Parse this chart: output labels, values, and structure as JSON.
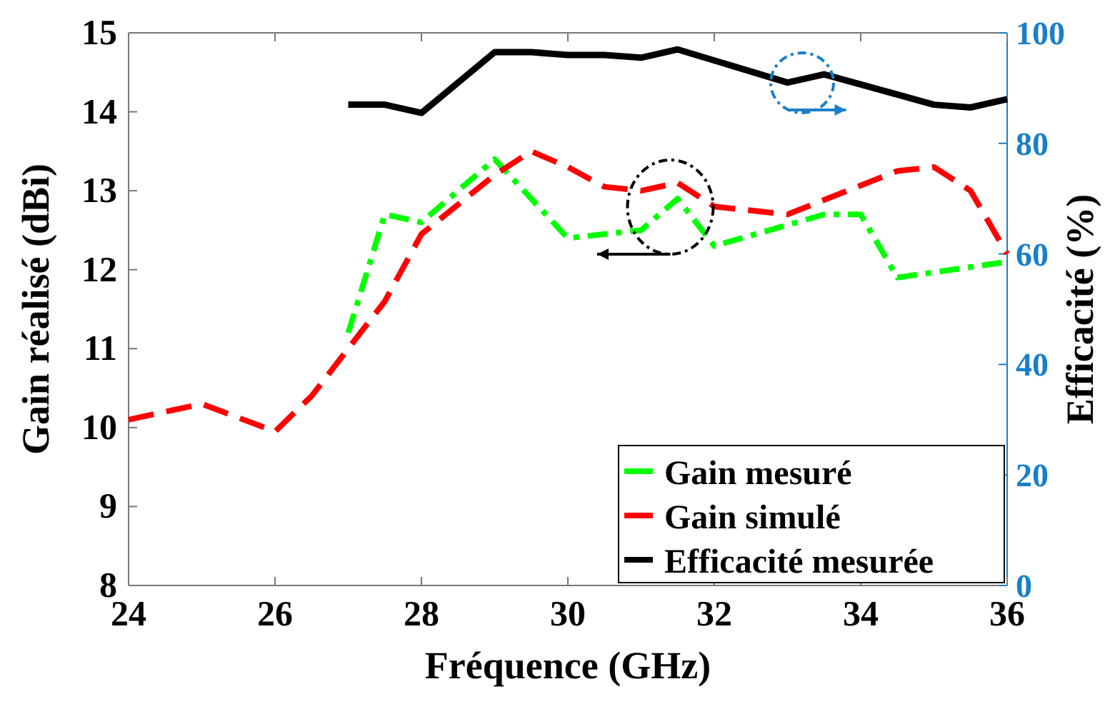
{
  "chart_data": {
    "type": "line",
    "xlabel": "Fréquence (GHz)",
    "ylabel": "Gain réalisé (dBi)",
    "y2label": "Efficacité (%)",
    "xlim": [
      24,
      36
    ],
    "xticks": [
      24,
      26,
      28,
      30,
      32,
      34,
      36
    ],
    "ylim": [
      8,
      15
    ],
    "yticks": [
      8,
      9,
      10,
      11,
      12,
      13,
      14,
      15
    ],
    "y2lim": [
      0,
      100
    ],
    "y2ticks": [
      0,
      20,
      40,
      60,
      80,
      100
    ],
    "grid": false,
    "legend": "bottom right",
    "series": [
      {
        "name": "Gain mesuré",
        "color": "#00ff00",
        "line_style": "dashdot",
        "x": [
          27,
          27.5,
          28,
          29,
          30,
          31,
          31.5,
          32,
          33.5,
          34,
          34.5,
          36
        ],
        "values": [
          11.2,
          12.7,
          12.6,
          13.4,
          12.4,
          12.5,
          12.9,
          12.3,
          12.7,
          12.7,
          11.9,
          12.1
        ]
      },
      {
        "name": "Gain simulé",
        "color": "#ff0000",
        "line_style": "dashed",
        "x": [
          24,
          25,
          26,
          26.5,
          27,
          27.5,
          28,
          29,
          29.5,
          30,
          30.5,
          31,
          31.5,
          32,
          33,
          34.5,
          35,
          35.5,
          36
        ],
        "values": [
          10.1,
          10.3,
          9.95,
          10.4,
          11,
          11.6,
          12.45,
          13.2,
          13.5,
          13.3,
          13.05,
          13,
          13.1,
          12.8,
          12.7,
          13.25,
          13.3,
          13,
          12.2
        ]
      },
      {
        "name": "Efficacité mesurée",
        "color": "#000000",
        "line_style": "solid",
        "axis": "y2",
        "x": [
          27,
          27.5,
          28,
          29,
          29.5,
          30,
          30.5,
          31,
          31.5,
          33,
          33.5,
          35,
          35.5,
          36
        ],
        "values": [
          87,
          87,
          85.5,
          96.5,
          96.5,
          96,
          96,
          95.5,
          97,
          91,
          92.5,
          87,
          86.5,
          88
        ]
      }
    ]
  }
}
